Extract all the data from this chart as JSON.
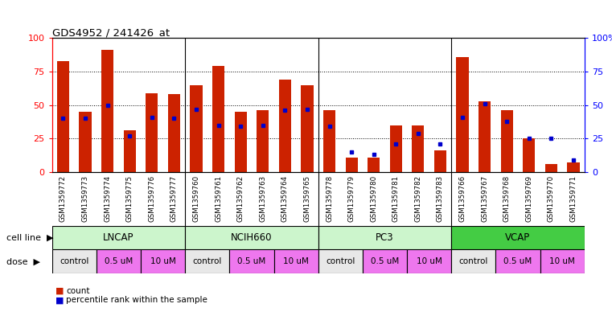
{
  "title": "GDS4952 / 241426_at",
  "samples": [
    "GSM1359772",
    "GSM1359773",
    "GSM1359774",
    "GSM1359775",
    "GSM1359776",
    "GSM1359777",
    "GSM1359760",
    "GSM1359761",
    "GSM1359762",
    "GSM1359763",
    "GSM1359764",
    "GSM1359765",
    "GSM1359778",
    "GSM1359779",
    "GSM1359780",
    "GSM1359781",
    "GSM1359782",
    "GSM1359783",
    "GSM1359766",
    "GSM1359767",
    "GSM1359768",
    "GSM1359769",
    "GSM1359770",
    "GSM1359771"
  ],
  "count_values": [
    83,
    45,
    91,
    31,
    59,
    58,
    65,
    79,
    45,
    46,
    69,
    65,
    46,
    11,
    11,
    35,
    35,
    16,
    86,
    53,
    46,
    25,
    6,
    7
  ],
  "percentile_values": [
    40,
    40,
    50,
    27,
    41,
    40,
    47,
    35,
    34,
    35,
    46,
    47,
    34,
    15,
    13,
    21,
    29,
    21,
    41,
    51,
    38,
    25,
    25,
    9
  ],
  "cell_lines": [
    {
      "name": "LNCAP",
      "start": 0,
      "end": 6
    },
    {
      "name": "NCIH660",
      "start": 6,
      "end": 12
    },
    {
      "name": "PC3",
      "start": 12,
      "end": 18
    },
    {
      "name": "VCAP",
      "start": 18,
      "end": 24
    }
  ],
  "cell_line_colors": [
    "#ccf5cc",
    "#ccf5cc",
    "#ccf5cc",
    "#44cc44"
  ],
  "dose_map": [
    [
      "control",
      0,
      2
    ],
    [
      "0.5 uM",
      2,
      4
    ],
    [
      "10 uM",
      4,
      6
    ],
    [
      "control",
      6,
      8
    ],
    [
      "0.5 uM",
      8,
      10
    ],
    [
      "10 uM",
      10,
      12
    ],
    [
      "control",
      12,
      14
    ],
    [
      "0.5 uM",
      14,
      16
    ],
    [
      "10 uM",
      16,
      18
    ],
    [
      "control",
      18,
      20
    ],
    [
      "0.5 uM",
      20,
      22
    ],
    [
      "10 uM",
      22,
      24
    ]
  ],
  "dose_colors": {
    "control": "#e8e8e8",
    "0.5 uM": "#ee77ee",
    "10 uM": "#ee77ee"
  },
  "bar_color": "#cc2200",
  "dot_color": "#0000cc",
  "grid_lines": [
    25,
    50,
    75
  ],
  "group_separators": [
    5.5,
    11.5,
    17.5
  ],
  "legend_count_label": "count",
  "legend_pct_label": "percentile rank within the sample",
  "xtick_bg_color": "#cccccc",
  "bar_width": 0.55
}
